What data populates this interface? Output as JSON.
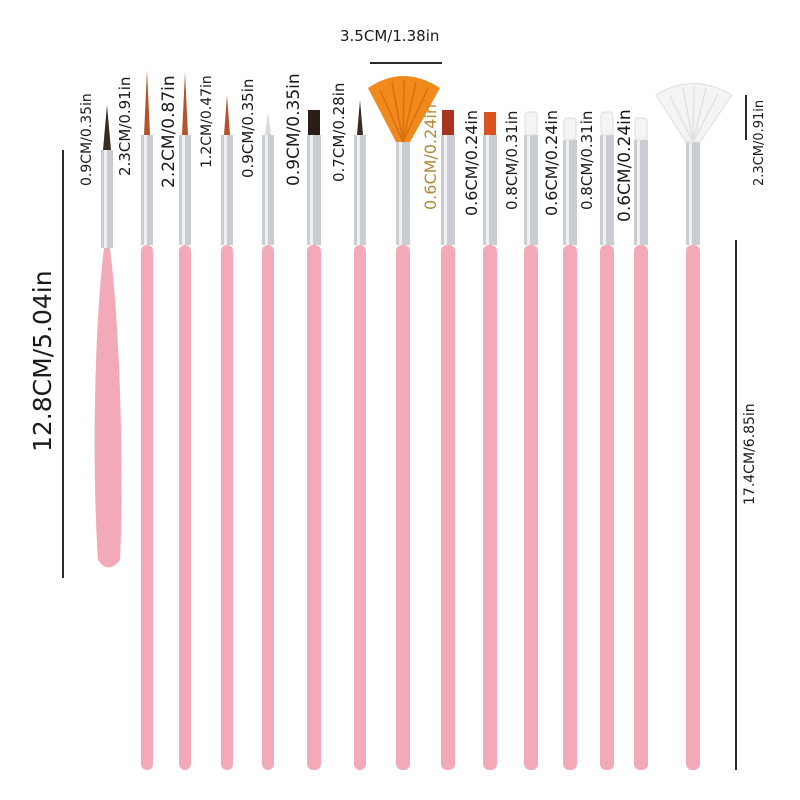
{
  "image": {
    "description_colors": {
      "handle": "#f2a9b8",
      "ferrule": "#c9ccd1",
      "orange_bristle": "#f08a1c",
      "white_bristle": "#f4f4f4",
      "dark_bristle": "#3a2a22"
    }
  },
  "labels": {
    "total_length": "12.8CM/5.04in",
    "long_total_length": "17.4CM/6.85in",
    "fan_width": "3.5CM/1.38in",
    "right_fan_height": "2.3CM/0.91in",
    "brush_sizes": [
      "0.9CM/0.35in",
      "2.3CM/0.91in",
      "2.2CM/0.87in",
      "1.2CM/0.47in",
      "0.9CM/0.35in",
      "0.9CM/0.35in",
      "0.7CM/0.28in",
      "0.6CM/0.24in",
      "0.6CM/0.24in",
      "0.8CM/0.31in",
      "0.6CM/0.24in",
      "0.8CM/0.31in",
      "0.6CM/0.24in"
    ]
  }
}
